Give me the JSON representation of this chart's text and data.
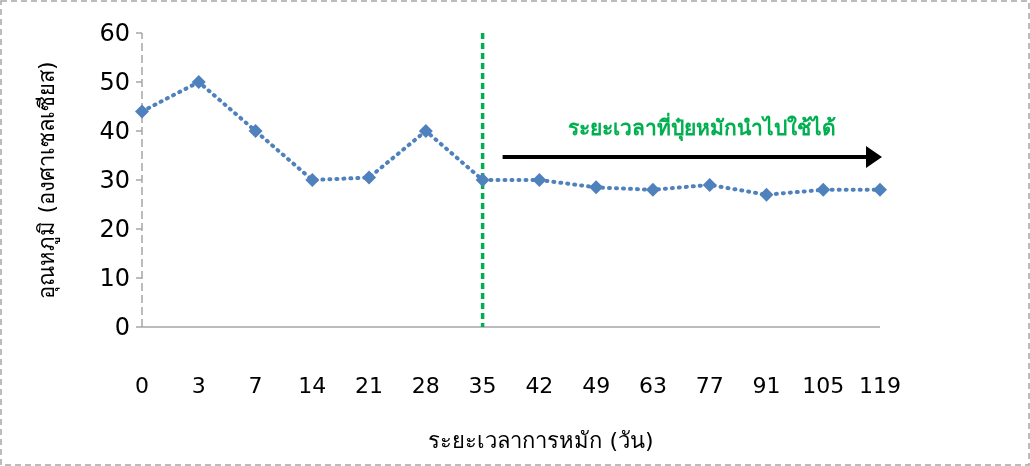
{
  "chart_data": {
    "type": "line",
    "xlabel": "ระยะเวลาการหมัก (วัน)",
    "ylabel": "อุณหภูมิ (องศาเซลเซียส)",
    "categories": [
      "0",
      "3",
      "7",
      "14",
      "21",
      "28",
      "35",
      "42",
      "49",
      "63",
      "77",
      "91",
      "105",
      "119"
    ],
    "series": [
      {
        "color": "#4f81bd",
        "values": [
          44,
          50,
          40,
          30,
          30.5,
          40,
          30,
          30,
          28.5,
          28,
          29,
          27,
          28,
          28
        ]
      }
    ],
    "ylim": [
      0,
      60
    ],
    "yticks": [
      0,
      10,
      20,
      30,
      40,
      50,
      60
    ],
    "grid": false,
    "marker": "diamond",
    "line_style": "dotted",
    "ref_lines": [
      {
        "axis": "x",
        "value": "35",
        "color": "#00b050",
        "line_style": "dashed"
      }
    ],
    "annotations": [
      "ระยะเวลาที่ปุ๋ยหมักนำไปใช้ได้"
    ]
  }
}
